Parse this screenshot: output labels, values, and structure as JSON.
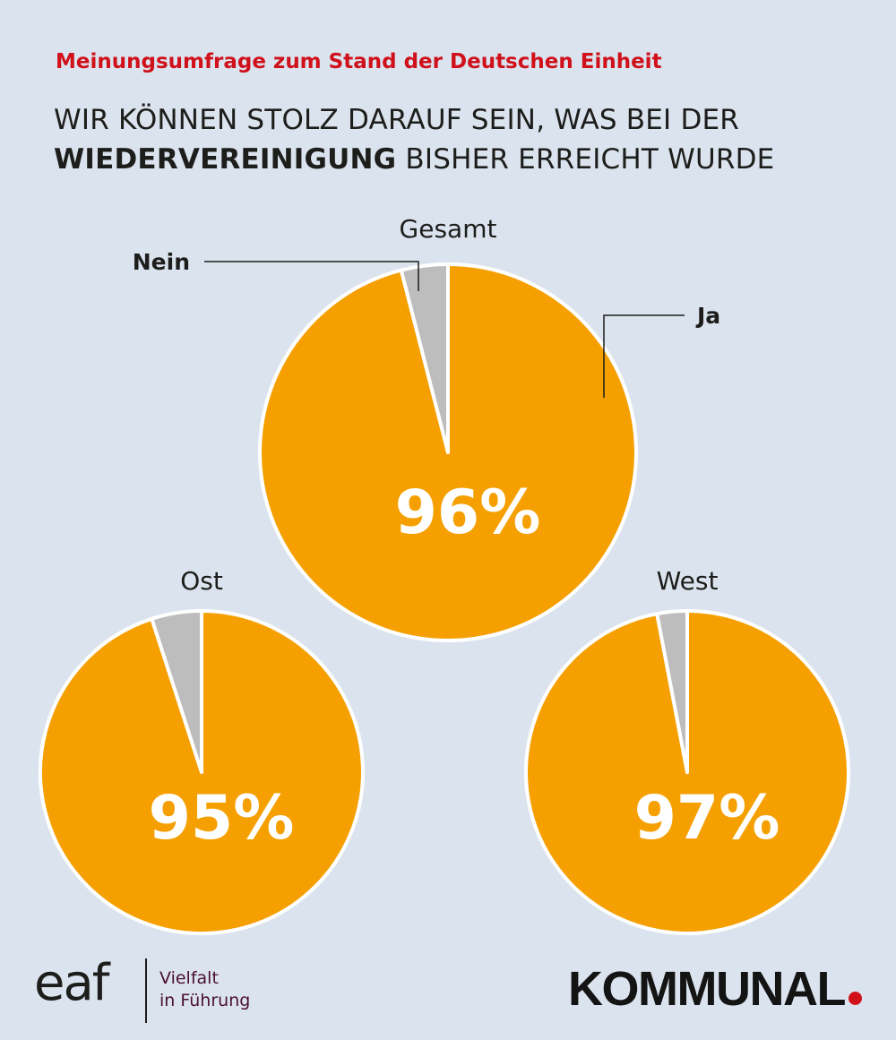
{
  "header": {
    "supertitle": "Meinungsumfrage zum Stand der Deutschen Einheit",
    "headline_part1": "Wir können stolz darauf sein, was bei der ",
    "headline_bold": "Wiedervereinigung",
    "headline_part2": " bisher erreicht wurde"
  },
  "chart_data": [
    {
      "type": "pie",
      "title": "Gesamt",
      "slices": [
        {
          "label": "Ja",
          "value": 96,
          "color": "#f5a000"
        },
        {
          "label": "Nein",
          "value": 4,
          "color": "#bdbdbd"
        }
      ],
      "value_label": "96%",
      "legend": "callouts"
    },
    {
      "type": "pie",
      "title": "Ost",
      "slices": [
        {
          "label": "Ja",
          "value": 95,
          "color": "#f5a000"
        },
        {
          "label": "Nein",
          "value": 5,
          "color": "#bdbdbd"
        }
      ],
      "value_label": "95%"
    },
    {
      "type": "pie",
      "title": "West",
      "slices": [
        {
          "label": "Ja",
          "value": 97,
          "color": "#f5a000"
        },
        {
          "label": "Nein",
          "value": 3,
          "color": "#bdbdbd"
        }
      ],
      "value_label": "97%"
    }
  ],
  "logos": {
    "eaf_mark": "eaf",
    "eaf_tag_line1": "Vielfalt",
    "eaf_tag_line2": "in Führung",
    "kommunal": "KOMMUNAL"
  },
  "colors": {
    "background": "#dbe4ee",
    "accent_red": "#d0101a",
    "ja": "#f5a000",
    "nein": "#bdbdbd"
  }
}
